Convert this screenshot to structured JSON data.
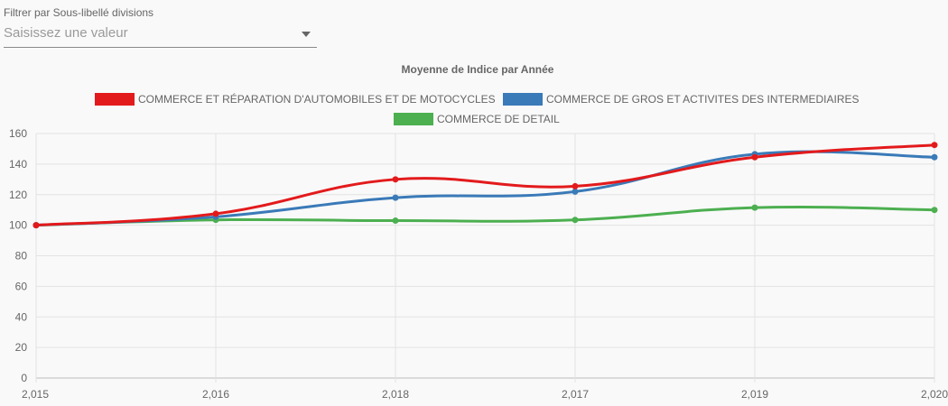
{
  "filter": {
    "label": "Filtrer par Sous-libellé divisions",
    "placeholder": "Saisissez une valeur",
    "icon": "chevron-down-icon"
  },
  "chart_data": {
    "type": "line",
    "title": "Moyenne de Indice par Année",
    "categories": [
      "2,015",
      "2,016",
      "2,018",
      "2,017",
      "2,019",
      "2,020"
    ],
    "ylim": [
      0,
      160
    ],
    "yticks": [
      0,
      20,
      40,
      60,
      80,
      100,
      120,
      140,
      160
    ],
    "grid": true,
    "legend_position": "top",
    "series": [
      {
        "name": "COMMERCE ET RÉPARATION D'AUTOMOBILES ET DE MOTOCYCLES",
        "color": "#e31a1c",
        "values": [
          100,
          107.5,
          130,
          125.5,
          144.5,
          152.5
        ]
      },
      {
        "name": "COMMERCE DE GROS ET ACTIVITES DES INTERMEDIAIRES",
        "color": "#3a7ab8",
        "values": [
          100,
          105.5,
          118,
          122,
          146.5,
          144.5
        ]
      },
      {
        "name": "COMMERCE DE DETAIL",
        "color": "#4caf50",
        "values": [
          100,
          103.5,
          103,
          103.5,
          111.5,
          110
        ]
      }
    ]
  }
}
